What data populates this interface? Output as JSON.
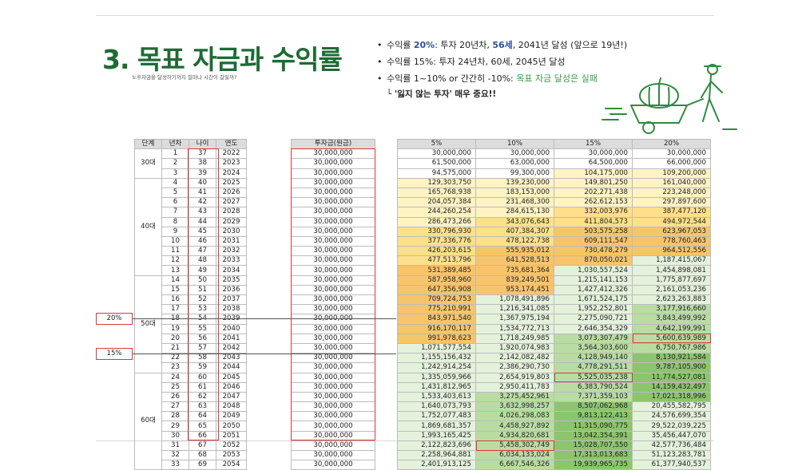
{
  "title": "3. 목표 자금과 수익률",
  "subtitle": "노후자금을 달성하기까지 얼마나 시간이 걸릴까?",
  "bullets": {
    "b1": {
      "prefix": "수익률 ",
      "rate": "20%",
      "mid": ": 투자 20년차, ",
      "age": "56세",
      "rest": ", 2041년 달성 (앞으로 19년!)"
    },
    "b2": "수익률 15%: 투자 24년차, 60세, 2045년 달성",
    "b3": {
      "prefix": "수익률 1~10% or 간간히 -10%: ",
      "rest": "목표 자금 달성은 실패"
    },
    "note": "└ '잃지 않는 투자' 매우 중요!!"
  },
  "markers": {
    "m20": "20%",
    "m15": "15%"
  },
  "colors": {
    "title": "#1e6b34",
    "highlight": "#d93a3a",
    "yellow_light": "#fff3c4",
    "yellow": "#ffe08a",
    "orange": "#f6c56b",
    "green_light": "#e4f2dc",
    "green": "#b9dca3",
    "green_dark": "#8cc56c"
  },
  "table_left": {
    "headers": [
      "단계",
      "년차",
      "나이",
      "연도"
    ],
    "groups": [
      {
        "label": "30대",
        "rows": [
          [
            "1",
            "37",
            "2022"
          ],
          [
            "2",
            "38",
            "2023"
          ],
          [
            "3",
            "39",
            "2024"
          ]
        ]
      },
      {
        "label": "40대",
        "rows": [
          [
            "4",
            "40",
            "2025"
          ],
          [
            "5",
            "41",
            "2026"
          ],
          [
            "6",
            "42",
            "2027"
          ],
          [
            "7",
            "43",
            "2028"
          ],
          [
            "8",
            "44",
            "2029"
          ],
          [
            "9",
            "45",
            "2030"
          ],
          [
            "10",
            "46",
            "2031"
          ],
          [
            "11",
            "47",
            "2032"
          ],
          [
            "12",
            "48",
            "2033"
          ],
          [
            "13",
            "49",
            "2034"
          ]
        ]
      },
      {
        "label": "50대",
        "rows": [
          [
            "14",
            "50",
            "2035"
          ],
          [
            "15",
            "51",
            "2036"
          ],
          [
            "16",
            "52",
            "2037"
          ],
          [
            "17",
            "53",
            "2038"
          ],
          [
            "18",
            "54",
            "2039"
          ],
          [
            "19",
            "55",
            "2040"
          ],
          [
            "20",
            "56",
            "2041"
          ],
          [
            "21",
            "57",
            "2042"
          ],
          [
            "22",
            "58",
            "2043"
          ],
          [
            "23",
            "59",
            "2044"
          ]
        ]
      },
      {
        "label": "60대",
        "rows": [
          [
            "24",
            "60",
            "2045"
          ],
          [
            "25",
            "61",
            "2046"
          ],
          [
            "26",
            "62",
            "2047"
          ],
          [
            "27",
            "63",
            "2048"
          ],
          [
            "28",
            "64",
            "2049"
          ],
          [
            "29",
            "65",
            "2050"
          ],
          [
            "30",
            "66",
            "2051"
          ],
          [
            "31",
            "67",
            "2052"
          ],
          [
            "32",
            "68",
            "2053"
          ],
          [
            "33",
            "69",
            "2054"
          ]
        ]
      }
    ]
  },
  "table_principal": {
    "header": "투자금(원금)",
    "value": "30,000,000",
    "rows": 33
  },
  "table_returns": {
    "headers": [
      "5%",
      "10%",
      "15%",
      "20%"
    ],
    "rows": [
      [
        "30,000,000",
        "30,000,000",
        "30,000,000",
        "30,000,000"
      ],
      [
        "61,500,000",
        "63,000,000",
        "64,500,000",
        "66,000,000"
      ],
      [
        "94,575,000",
        "99,300,000",
        "104,175,000",
        "109,200,000"
      ],
      [
        "129,303,750",
        "139,230,000",
        "149,801,250",
        "161,040,000"
      ],
      [
        "165,768,938",
        "183,153,000",
        "202,271,438",
        "223,248,000"
      ],
      [
        "204,057,384",
        "231,468,300",
        "262,612,153",
        "297,897,600"
      ],
      [
        "244,260,254",
        "284,615,130",
        "332,003,976",
        "387,477,120"
      ],
      [
        "286,473,266",
        "343,076,643",
        "411,804,573",
        "494,972,544"
      ],
      [
        "330,796,930",
        "407,384,307",
        "503,575,258",
        "623,967,053"
      ],
      [
        "377,336,776",
        "478,122,738",
        "609,111,547",
        "778,760,463"
      ],
      [
        "426,203,615",
        "555,935,012",
        "730,478,279",
        "964,512,556"
      ],
      [
        "477,513,796",
        "641,528,513",
        "870,050,021",
        "1,187,415,067"
      ],
      [
        "531,389,485",
        "735,681,364",
        "1,030,557,524",
        "1,454,898,081"
      ],
      [
        "587,958,960",
        "839,249,501",
        "1,215,141,153",
        "1,775,877,697"
      ],
      [
        "647,356,908",
        "953,174,451",
        "1,427,412,326",
        "2,161,053,236"
      ],
      [
        "709,724,753",
        "1,078,491,896",
        "1,671,524,175",
        "2,623,263,883"
      ],
      [
        "775,210,991",
        "1,216,341,085",
        "1,952,252,801",
        "3,177,916,660"
      ],
      [
        "843,971,540",
        "1,367,975,194",
        "2,275,090,721",
        "3,843,499,992"
      ],
      [
        "916,170,117",
        "1,534,772,713",
        "2,646,354,329",
        "4,642,199,991"
      ],
      [
        "991,978,623",
        "1,718,249,985",
        "3,073,307,479",
        "5,600,639,989"
      ],
      [
        "1,071,577,554",
        "1,920,074,983",
        "3,564,303,600",
        "6,750,767,986"
      ],
      [
        "1,155,156,432",
        "2,142,082,482",
        "4,128,949,140",
        "8,130,921,584"
      ],
      [
        "1,242,914,254",
        "2,386,290,730",
        "4,778,291,511",
        "9,787,105,900"
      ],
      [
        "1,335,059,966",
        "2,654,919,803",
        "5,525,035,238",
        "11,774,527,081"
      ],
      [
        "1,431,812,965",
        "2,950,411,783",
        "6,383,790,524",
        "14,159,432,497"
      ],
      [
        "1,533,403,613",
        "3,275,452,961",
        "7,371,359,103",
        "17,021,318,996"
      ],
      [
        "1,640,073,793",
        "3,632,998,257",
        "8,507,062,968",
        "20,455,582,795"
      ],
      [
        "1,752,077,483",
        "4,026,298,083",
        "9,813,122,413",
        "24,576,699,354"
      ],
      [
        "1,869,681,357",
        "4,458,927,892",
        "11,315,090,775",
        "29,522,039,225"
      ],
      [
        "1,993,165,425",
        "4,934,820,681",
        "13,042,354,391",
        "35,456,447,070"
      ],
      [
        "2,122,823,696",
        "5,458,302,749",
        "15,028,707,550",
        "42,577,736,484"
      ],
      [
        "2,258,964,881",
        "6,034,133,024",
        "17,313,013,683",
        "51,123,283,781"
      ],
      [
        "2,401,913,125",
        "6,667,546,326",
        "19,939,965,735",
        "61,377,940,537"
      ]
    ]
  }
}
